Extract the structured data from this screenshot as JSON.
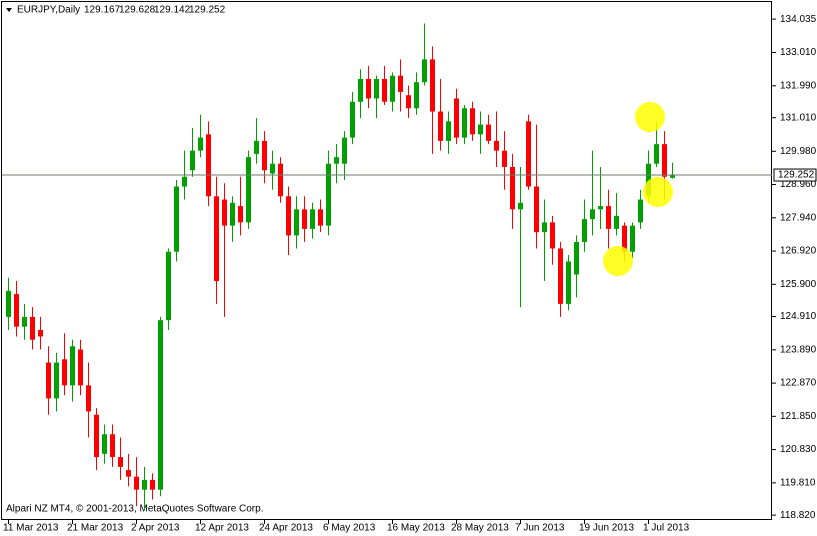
{
  "chart_data": {
    "type": "candlestick",
    "title": "EURJPY,Daily",
    "footer": "Alpari NZ MT4, © 2001-2013, MetaQuotes Software Corp.",
    "up_color": "#00a000",
    "down_color": "#ff0000",
    "ylim": [
      118.67,
      134.56
    ],
    "yticks": [
      134.035,
      {
        "value": 133.01,
        "label": "133.010"
      },
      {
        "value": 131.99,
        "label": "131.990"
      },
      {
        "value": 131.01,
        "label": "131.010"
      },
      {
        "value": 129.98,
        "label": "129.980"
      },
      {
        "value": 128.96,
        "label": "128.960"
      },
      {
        "value": 127.94,
        "label": "127.940"
      },
      {
        "value": 126.92,
        "label": "126.920"
      },
      {
        "value": 125.9,
        "label": "125.900"
      },
      {
        "value": 124.91,
        "label": "124.910"
      },
      {
        "value": 123.89,
        "label": "123.890"
      },
      {
        "value": 122.87,
        "label": "122.870"
      },
      {
        "value": 121.85,
        "label": "121.850"
      },
      {
        "value": 120.83,
        "label": "120.830"
      },
      {
        "value": 119.81,
        "label": "119.810"
      },
      {
        "value": 118.82,
        "label": "118.820"
      }
    ],
    "categories": [
      "11 Mar 2013",
      null,
      null,
      null,
      null,
      null,
      null,
      null,
      "21 Mar 2013",
      null,
      null,
      null,
      null,
      null,
      null,
      null,
      "2 Apr 2013",
      null,
      null,
      null,
      null,
      null,
      null,
      null,
      "12 Apr 2013",
      null,
      null,
      null,
      null,
      null,
      null,
      null,
      "24 Apr 2013",
      null,
      null,
      null,
      null,
      null,
      null,
      null,
      "6 May 2013",
      null,
      null,
      null,
      null,
      null,
      null,
      null,
      "16 May 2013",
      null,
      null,
      null,
      null,
      null,
      null,
      null,
      "28 May 2013",
      null,
      null,
      null,
      null,
      null,
      null,
      null,
      "7 Jun 2013",
      null,
      null,
      null,
      null,
      null,
      null,
      null,
      "19 Jun 2013",
      null,
      null,
      null,
      null,
      null,
      null,
      null,
      "1 Jul 2013",
      null,
      null,
      null
    ],
    "open": [
      124.9,
      125.6,
      124.6,
      124.9,
      124.5,
      123.5,
      122.4,
      123.6,
      122.8,
      123.9,
      122.8,
      121.9,
      120.7,
      121.3,
      120.6,
      120.2,
      120.0,
      119.6,
      119.9,
      119.6,
      124.8,
      126.9,
      128.9,
      129.4,
      130.0,
      130.5,
      128.6,
      128.5,
      127.7,
      128.3,
      127.8,
      129.9,
      130.3,
      129.3,
      129.6,
      128.6,
      127.4,
      128.2,
      127.6,
      128.2,
      127.7,
      129.6,
      129.6,
      130.4,
      131.5,
      132.2,
      131.6,
      132.2,
      131.5,
      132.3,
      131.7,
      131.3,
      132.1,
      132.8,
      131.2,
      130.3,
      131.6,
      130.4,
      131.3,
      130.5,
      130.8,
      130.3,
      130.0,
      129.5,
      128.2,
      130.9,
      128.9,
      127.5,
      127.8,
      127.0,
      125.3,
      126.2,
      127.2,
      127.9,
      128.2,
      128.3,
      127.6,
      127.7,
      126.9,
      127.8,
      128.6,
      129.6,
      130.2,
      129.167
    ],
    "high": [
      126.1,
      126.0,
      125.3,
      125.2,
      124.9,
      124.0,
      123.8,
      124.4,
      124.2,
      124.2,
      123.5,
      122.1,
      121.6,
      121.6,
      121.2,
      120.7,
      120.6,
      120.3,
      120.1,
      124.9,
      127.0,
      129.1,
      130.0,
      130.7,
      131.1,
      130.9,
      129.2,
      129.0,
      128.6,
      129.2,
      130.0,
      131.0,
      130.6,
      130.0,
      129.8,
      128.9,
      128.6,
      128.6,
      128.4,
      128.5,
      130.0,
      130.2,
      130.6,
      131.8,
      132.5,
      132.6,
      132.3,
      132.6,
      132.4,
      132.8,
      132.0,
      132.4,
      133.9,
      133.2,
      132.2,
      131.2,
      131.9,
      131.4,
      131.5,
      131.2,
      131.1,
      131.2,
      130.6,
      129.9,
      129.5,
      131.1,
      130.8,
      128.5,
      128.0,
      127.2,
      126.8,
      127.4,
      128.5,
      130.0,
      129.5,
      128.8,
      128.7,
      127.8,
      127.8,
      128.8,
      130.0,
      130.9,
      130.6,
      129.628
    ],
    "low": [
      124.5,
      124.3,
      124.2,
      123.9,
      123.9,
      121.9,
      122.0,
      122.5,
      122.3,
      122.5,
      121.2,
      120.2,
      120.4,
      120.3,
      119.9,
      119.7,
      119.1,
      119.0,
      119.3,
      119.4,
      124.5,
      126.6,
      128.5,
      129.2,
      129.8,
      128.3,
      125.3,
      124.9,
      127.2,
      127.4,
      127.6,
      129.6,
      129.0,
      128.8,
      128.4,
      126.8,
      127.0,
      127.2,
      127.3,
      127.5,
      127.4,
      129.0,
      129.1,
      130.2,
      131.0,
      131.3,
      131.0,
      131.4,
      131.2,
      131.2,
      131.0,
      131.1,
      132.0,
      129.9,
      130.0,
      129.9,
      130.2,
      130.2,
      130.3,
      129.9,
      130.2,
      129.5,
      128.8,
      127.6,
      125.2,
      128.8,
      127.0,
      126.0,
      126.5,
      124.9,
      125.1,
      125.5,
      126.9,
      127.4,
      127.6,
      127.0,
      127.4,
      126.6,
      126.7,
      127.6,
      128.4,
      129.5,
      128.5,
      129.142
    ],
    "close": [
      125.7,
      124.6,
      124.9,
      124.2,
      124.3,
      122.4,
      123.5,
      122.8,
      124.0,
      122.8,
      122.0,
      120.6,
      121.3,
      120.6,
      120.3,
      120.0,
      119.6,
      119.9,
      119.6,
      124.8,
      126.9,
      128.9,
      129.2,
      130.0,
      130.4,
      128.6,
      126.0,
      127.7,
      128.4,
      127.8,
      129.8,
      130.3,
      129.4,
      129.6,
      128.6,
      127.4,
      128.2,
      127.6,
      128.2,
      127.7,
      129.6,
      129.8,
      130.4,
      131.5,
      132.2,
      131.6,
      132.2,
      131.5,
      132.3,
      131.8,
      131.3,
      132.1,
      132.8,
      131.2,
      130.3,
      130.9,
      130.4,
      131.3,
      130.5,
      130.8,
      130.3,
      130.0,
      129.5,
      128.2,
      128.4,
      128.9,
      127.5,
      127.8,
      127.0,
      125.3,
      126.6,
      127.2,
      127.9,
      128.2,
      128.3,
      127.6,
      128.0,
      126.9,
      127.7,
      128.5,
      129.6,
      130.2,
      129.2,
      129.252
    ]
  }
}
